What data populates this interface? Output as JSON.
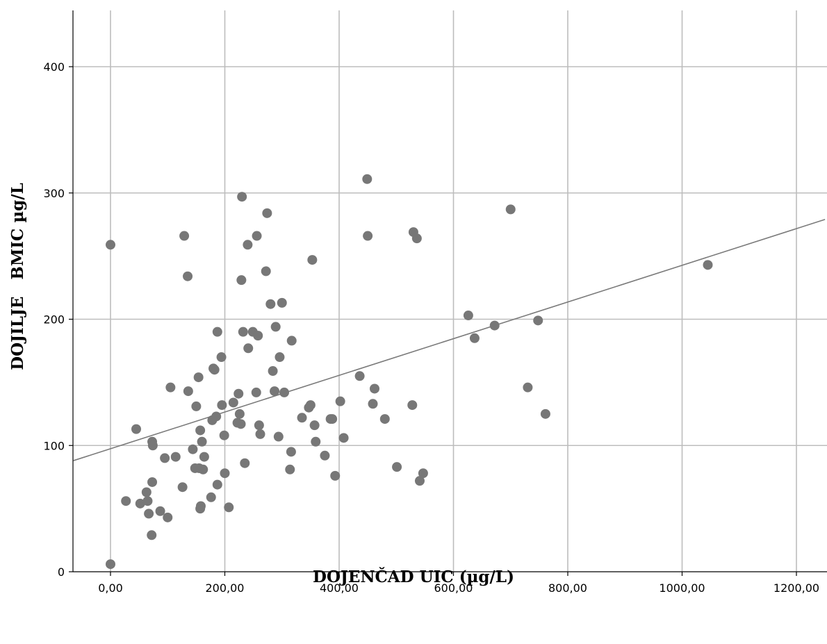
{
  "chart_data": {
    "type": "scatter",
    "title": "",
    "xlabel": "DOJENČAD UIC (µg/L)",
    "ylabel": "DOJILJE   BMIC µg/L",
    "xlim": [
      -65,
      1250
    ],
    "ylim": [
      0,
      445
    ],
    "x_ticks": [
      0,
      200,
      400,
      600,
      800,
      1000,
      1200
    ],
    "x_tick_labels": [
      "0,00",
      "200,00",
      "400,00",
      "600,00",
      "800,00",
      "1000,00",
      "1200,00"
    ],
    "y_ticks": [
      0,
      100,
      200,
      300,
      400
    ],
    "y_tick_labels": [
      "0",
      "100",
      "200",
      "300",
      "400"
    ],
    "grid": true,
    "colors": {
      "points": "#777777",
      "fit_line": "#7a7a7a",
      "grid": "#bdbdbd"
    },
    "fit_line": {
      "x": [
        -65,
        1250
      ],
      "y": [
        88,
        279
      ]
    },
    "series": [
      {
        "points": [
          [
            0,
            6
          ],
          [
            0,
            259
          ],
          [
            27,
            56
          ],
          [
            45,
            113
          ],
          [
            52,
            54
          ],
          [
            63,
            63
          ],
          [
            65,
            56
          ],
          [
            67,
            46
          ],
          [
            72,
            29
          ],
          [
            73,
            71
          ],
          [
            73,
            103
          ],
          [
            74,
            100
          ],
          [
            87,
            48
          ],
          [
            95,
            90
          ],
          [
            100,
            43
          ],
          [
            105,
            146
          ],
          [
            114,
            91
          ],
          [
            126,
            67
          ],
          [
            129,
            266
          ],
          [
            135,
            234
          ],
          [
            136,
            143
          ],
          [
            144,
            97
          ],
          [
            148,
            82
          ],
          [
            150,
            131
          ],
          [
            154,
            154
          ],
          [
            155,
            82
          ],
          [
            157,
            50
          ],
          [
            157,
            112
          ],
          [
            158,
            52
          ],
          [
            160,
            103
          ],
          [
            162,
            81
          ],
          [
            164,
            91
          ],
          [
            176,
            59
          ],
          [
            178,
            120
          ],
          [
            180,
            161
          ],
          [
            182,
            160
          ],
          [
            185,
            123
          ],
          [
            187,
            69
          ],
          [
            187,
            190
          ],
          [
            194,
            170
          ],
          [
            195,
            132
          ],
          [
            199,
            108
          ],
          [
            200,
            78
          ],
          [
            207,
            51
          ],
          [
            215,
            134
          ],
          [
            222,
            118
          ],
          [
            224,
            141
          ],
          [
            226,
            125
          ],
          [
            228,
            117
          ],
          [
            229,
            231
          ],
          [
            230,
            297
          ],
          [
            232,
            190
          ],
          [
            235,
            86
          ],
          [
            240,
            259
          ],
          [
            241,
            177
          ],
          [
            249,
            190
          ],
          [
            255,
            142
          ],
          [
            256,
            266
          ],
          [
            258,
            187
          ],
          [
            260,
            116
          ],
          [
            262,
            109
          ],
          [
            272,
            238
          ],
          [
            274,
            284
          ],
          [
            280,
            212
          ],
          [
            284,
            159
          ],
          [
            287,
            143
          ],
          [
            289,
            194
          ],
          [
            294,
            107
          ],
          [
            296,
            170
          ],
          [
            300,
            213
          ],
          [
            304,
            142
          ],
          [
            314,
            81
          ],
          [
            316,
            95
          ],
          [
            317,
            183
          ],
          [
            335,
            122
          ],
          [
            347,
            130
          ],
          [
            350,
            132
          ],
          [
            353,
            247
          ],
          [
            357,
            116
          ],
          [
            359,
            103
          ],
          [
            375,
            92
          ],
          [
            385,
            121
          ],
          [
            388,
            121
          ],
          [
            393,
            76
          ],
          [
            402,
            135
          ],
          [
            408,
            106
          ],
          [
            436,
            155
          ],
          [
            449,
            311
          ],
          [
            450,
            266
          ],
          [
            459,
            133
          ],
          [
            462,
            145
          ],
          [
            480,
            121
          ],
          [
            501,
            83
          ],
          [
            528,
            132
          ],
          [
            530,
            269
          ],
          [
            536,
            264
          ],
          [
            541,
            72
          ],
          [
            547,
            78
          ],
          [
            626,
            203
          ],
          [
            637,
            185
          ],
          [
            672,
            195
          ],
          [
            700,
            287
          ],
          [
            730,
            146
          ],
          [
            748,
            199
          ],
          [
            761,
            125
          ],
          [
            1045,
            243
          ]
        ]
      }
    ]
  }
}
